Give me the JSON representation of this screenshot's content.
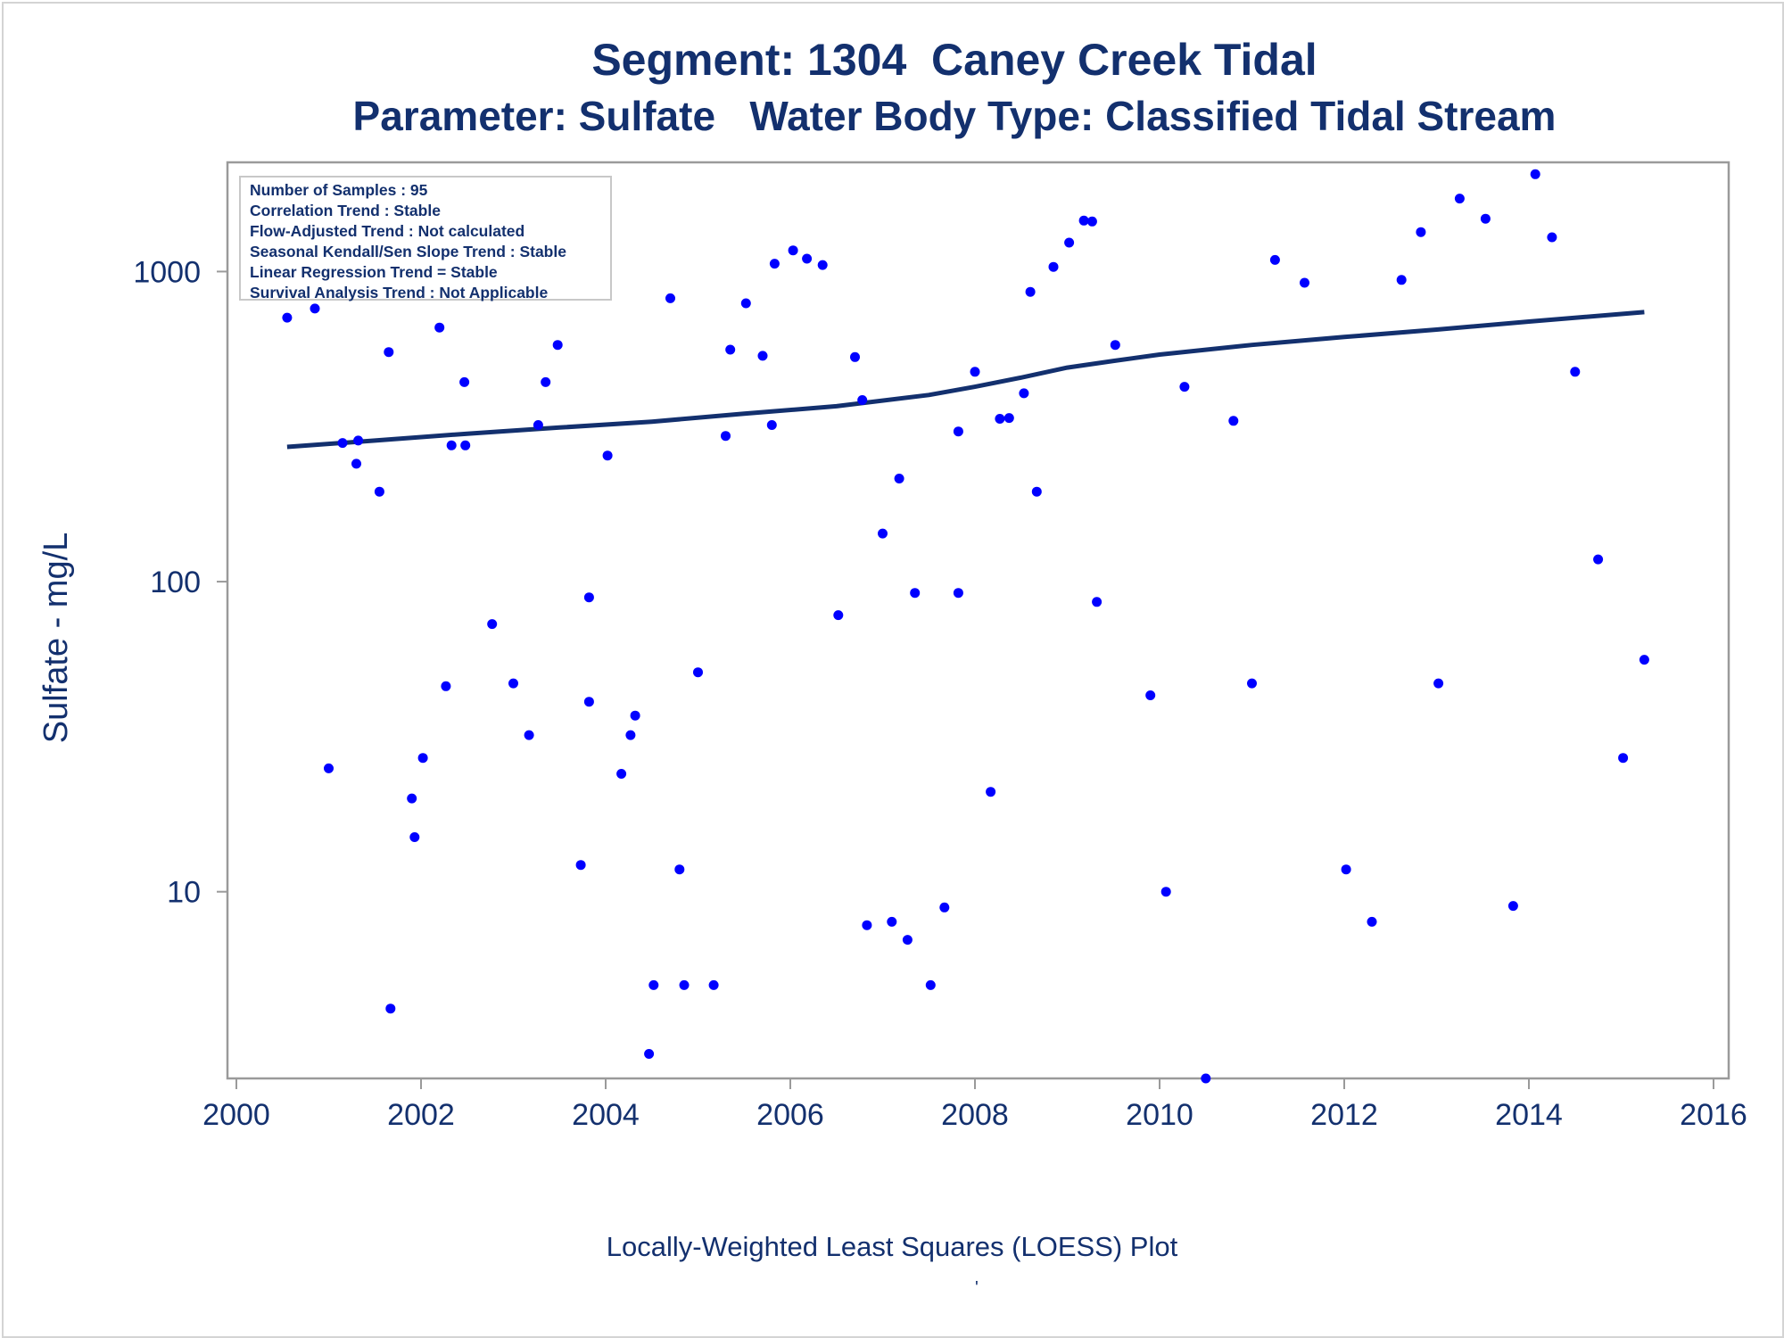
{
  "chart_data": {
    "type": "scatter",
    "title": "Segment: 1304  Caney Creek Tidal",
    "subtitle": "Parameter: Sulfate   Water Body Type: Classified Tidal Stream",
    "xlabel": "",
    "ylabel": "Sulfate - mg/L",
    "footnote": "Locally-Weighted Least Squares (LOESS) Plot",
    "footnote_mark": "'",
    "x_ticks": [
      2000,
      2002,
      2004,
      2006,
      2008,
      2010,
      2012,
      2014,
      2016
    ],
    "y_ticks": [
      10,
      100,
      1000
    ],
    "xlim": [
      2000,
      2016
    ],
    "ylim": [
      2.5,
      2250
    ],
    "y_scale": "log",
    "legend": "none",
    "grid": false,
    "info_box": {
      "position": "top-left",
      "lines": [
        "Number of Samples : 95",
        "Correlation Trend : Stable",
        "Flow-Adjusted Trend : Not calculated",
        "Seasonal Kendall/Sen Slope Trend : Stable",
        "Linear Regression Trend = Stable",
        "Survival Analysis Trend : Not Applicable"
      ]
    },
    "colors": {
      "points": "#0000ff",
      "line": "#13306e",
      "text": "#13306e"
    },
    "series": [
      {
        "type": "scatter",
        "points": [
          [
            2000.55,
            710
          ],
          [
            2000.7,
            1500
          ],
          [
            2000.85,
            760
          ],
          [
            2001.0,
            25
          ],
          [
            2001.15,
            280
          ],
          [
            2001.3,
            240
          ],
          [
            2001.32,
            285
          ],
          [
            2001.55,
            195
          ],
          [
            2001.65,
            550
          ],
          [
            2001.67,
            4.2
          ],
          [
            2001.9,
            20
          ],
          [
            2001.93,
            15
          ],
          [
            2002.02,
            27
          ],
          [
            2002.2,
            660
          ],
          [
            2002.27,
            46
          ],
          [
            2002.33,
            275
          ],
          [
            2002.47,
            440
          ],
          [
            2002.48,
            275
          ],
          [
            2002.77,
            73
          ],
          [
            2003.0,
            47
          ],
          [
            2003.17,
            32
          ],
          [
            2003.27,
            320
          ],
          [
            2003.35,
            440
          ],
          [
            2003.48,
            580
          ],
          [
            2003.73,
            12.2
          ],
          [
            2003.82,
            89
          ],
          [
            2003.82,
            41
          ],
          [
            2004.02,
            255
          ],
          [
            2004.17,
            24
          ],
          [
            2004.27,
            32
          ],
          [
            2004.32,
            37
          ],
          [
            2004.47,
            3.0
          ],
          [
            2004.52,
            5.0
          ],
          [
            2004.7,
            820
          ],
          [
            2004.8,
            11.8
          ],
          [
            2004.85,
            5.0
          ],
          [
            2005.0,
            51
          ],
          [
            2005.17,
            5.0
          ],
          [
            2005.3,
            295
          ],
          [
            2005.35,
            560
          ],
          [
            2005.52,
            790
          ],
          [
            2005.7,
            535
          ],
          [
            2005.8,
            320
          ],
          [
            2005.83,
            1060
          ],
          [
            2006.03,
            1170
          ],
          [
            2006.18,
            1100
          ],
          [
            2006.35,
            1050
          ],
          [
            2006.52,
            78
          ],
          [
            2006.7,
            530
          ],
          [
            2006.78,
            385
          ],
          [
            2006.83,
            7.8
          ],
          [
            2007.0,
            143
          ],
          [
            2007.1,
            8.0
          ],
          [
            2007.18,
            215
          ],
          [
            2007.27,
            7.0
          ],
          [
            2007.35,
            92
          ],
          [
            2007.52,
            5.0
          ],
          [
            2007.67,
            8.9
          ],
          [
            2007.82,
            92
          ],
          [
            2007.82,
            305
          ],
          [
            2008.0,
            475
          ],
          [
            2008.17,
            21
          ],
          [
            2008.27,
            335
          ],
          [
            2008.37,
            337
          ],
          [
            2008.53,
            405
          ],
          [
            2008.6,
            860
          ],
          [
            2008.67,
            195
          ],
          [
            2008.85,
            1035
          ],
          [
            2009.02,
            1240
          ],
          [
            2009.18,
            1460
          ],
          [
            2009.27,
            1450
          ],
          [
            2009.32,
            86
          ],
          [
            2009.52,
            580
          ],
          [
            2009.9,
            43
          ],
          [
            2010.07,
            10
          ],
          [
            2010.27,
            425
          ],
          [
            2010.5,
            2.5
          ],
          [
            2010.8,
            330
          ],
          [
            2011.0,
            47
          ],
          [
            2011.25,
            1090
          ],
          [
            2011.57,
            920
          ],
          [
            2012.02,
            11.8
          ],
          [
            2012.3,
            8.0
          ],
          [
            2012.62,
            940
          ],
          [
            2012.83,
            1340
          ],
          [
            2013.02,
            47
          ],
          [
            2013.25,
            1720
          ],
          [
            2013.53,
            1480
          ],
          [
            2013.83,
            9.0
          ],
          [
            2014.07,
            2060
          ],
          [
            2014.25,
            1290
          ],
          [
            2014.5,
            475
          ],
          [
            2014.75,
            118
          ],
          [
            2015.02,
            27
          ],
          [
            2015.25,
            56
          ]
        ]
      },
      {
        "type": "line",
        "points": [
          [
            2000.55,
            272
          ],
          [
            2001.5,
            285
          ],
          [
            2002.5,
            300
          ],
          [
            2003.5,
            314
          ],
          [
            2004.5,
            328
          ],
          [
            2005.5,
            348
          ],
          [
            2006.5,
            368
          ],
          [
            2007.5,
            400
          ],
          [
            2008.0,
            425
          ],
          [
            2008.5,
            455
          ],
          [
            2009.0,
            490
          ],
          [
            2009.5,
            515
          ],
          [
            2010.0,
            540
          ],
          [
            2011.0,
            580
          ],
          [
            2012.0,
            615
          ],
          [
            2013.0,
            650
          ],
          [
            2014.0,
            690
          ],
          [
            2015.25,
            740
          ]
        ]
      }
    ]
  }
}
